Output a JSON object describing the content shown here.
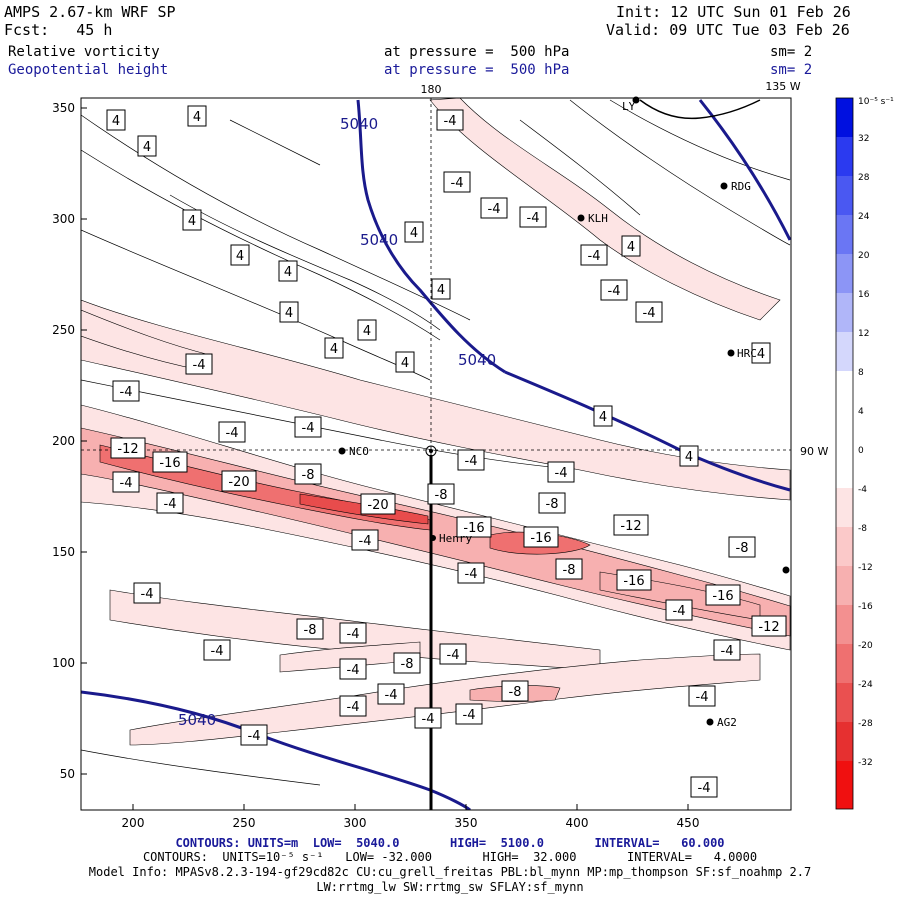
{
  "header": {
    "model": "AMPS 2.67-km WRF SP",
    "fcst": "Fcst:   45 h",
    "init": "Init: 12 UTC Sun 01 Feb 26",
    "valid": "Valid: 09 UTC Tue 03 Feb 26",
    "field1": "Relative vorticity",
    "field1_level": "at pressure =  500 hPa",
    "field1_sm": "sm= 2",
    "field2": "Geopotential height",
    "field2_level": "at pressure =  500 hPa",
    "field2_sm": "sm= 2"
  },
  "map": {
    "lon_top_180": "180",
    "lon_top_135w": "135 W",
    "lon_right_90w": "90 W",
    "x_ticks": [
      "200",
      "250",
      "300",
      "350",
      "400",
      "450"
    ],
    "y_ticks": [
      "350",
      "300",
      "250",
      "200",
      "150",
      "100",
      "50"
    ],
    "stations": [
      {
        "name": "NCO"
      },
      {
        "name": "Henry"
      },
      {
        "name": "KLH"
      },
      {
        "name": "RDG"
      },
      {
        "name": "HRC"
      },
      {
        "name": "AG2"
      },
      {
        "name": "LY"
      }
    ],
    "height_labels": [
      "5040",
      "5040",
      "5040",
      "5040"
    ],
    "vort_labels": [
      "4",
      "-4",
      "-8",
      "-12",
      "-16",
      "-20"
    ]
  },
  "colorbar": {
    "unit": "10⁻⁵ s⁻¹",
    "ticks": [
      "32",
      "28",
      "24",
      "20",
      "16",
      "12",
      "8",
      "4",
      "0",
      "-4",
      "-8",
      "-12",
      "-16",
      "-20",
      "-24",
      "-28",
      "-32"
    ]
  },
  "footer": {
    "line1_prefix": "CONTOURS:",
    "line1": " UNITS=m  LOW=  5040.0       HIGH=  5100.0       INTERVAL=   60.000",
    "line2": "CONTOURS:  UNITS=10⁻⁵ s⁻¹   LOW= -32.000       HIGH=  32.000       INTERVAL=   4.0000",
    "line3": "Model Info: MPASv8.2.3-194-gf29cd82c CU:cu_grell_freitas PBL:bl_mynn MP:mp_thompson SF:sf_noahmp 2.7",
    "line4": "LW:rrtmg_lw SW:rrtmg_sw SFLAY:sf_mynn"
  },
  "colors": {
    "height_contour": "#1a1a8c",
    "neg_light": "#fde4e4",
    "neg_mid": "#f7b0b0",
    "neg_strong": "#ef7070",
    "neg_core": "#e84c4c"
  }
}
